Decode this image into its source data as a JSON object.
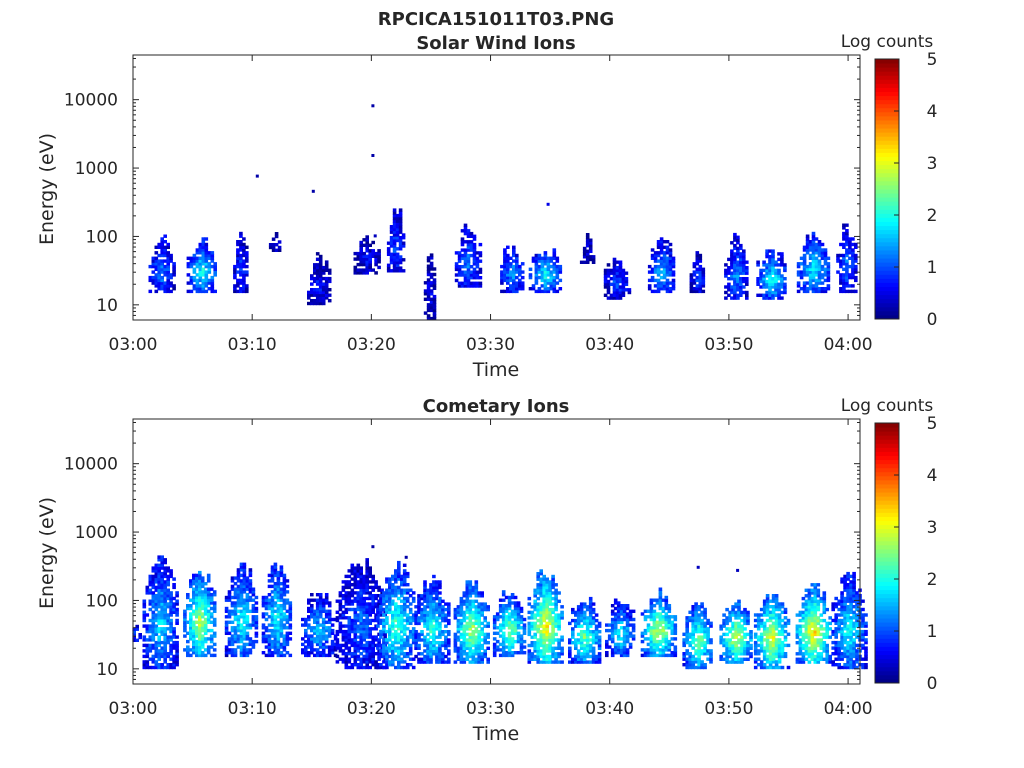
{
  "figure_title": "RPCICA151011T03.PNG",
  "chart_data": [
    {
      "type": "heatmap",
      "title": "Solar Wind Ions",
      "xlabel": "Time",
      "ylabel": "Energy (eV)",
      "y_scale": "log",
      "ylim": [
        6,
        45000
      ],
      "x_range_minutes": [
        0,
        61
      ],
      "x_tick_labels": [
        "03:00",
        "03:10",
        "03:20",
        "03:30",
        "03:40",
        "03:50",
        "04:00"
      ],
      "y_tick_labels": [
        "10",
        "100",
        "1000",
        "10000"
      ],
      "colorbar": {
        "label": "Log counts",
        "range": [
          0,
          5
        ],
        "ticks": [
          "0",
          "1",
          "2",
          "3",
          "4",
          "5"
        ],
        "colormap": "jet"
      },
      "clusters": [
        {
          "t": 2.3,
          "e_lo": 15,
          "e_hi": 85,
          "peak": 1.3,
          "w": 1.0
        },
        {
          "t": 5.7,
          "e_lo": 15,
          "e_hi": 80,
          "peak": 2.0,
          "w": 1.2
        },
        {
          "t": 9.0,
          "e_lo": 15,
          "e_hi": 95,
          "peak": 1.0,
          "w": 0.6
        },
        {
          "t": 11.8,
          "e_lo": 60,
          "e_hi": 100,
          "peak": 0.6,
          "w": 0.4
        },
        {
          "t": 15.5,
          "e_lo": 10,
          "e_hi": 45,
          "peak": 0.7,
          "w": 0.9
        },
        {
          "t": 19.5,
          "e_lo": 28,
          "e_hi": 95,
          "peak": 0.6,
          "w": 1.0
        },
        {
          "t": 22.0,
          "e_lo": 30,
          "e_hi": 220,
          "peak": 1.1,
          "w": 0.7
        },
        {
          "t": 24.8,
          "e_lo": 6,
          "e_hi": 60,
          "peak": 0.6,
          "w": 0.4
        },
        {
          "t": 28.0,
          "e_lo": 18,
          "e_hi": 120,
          "peak": 1.3,
          "w": 1.0
        },
        {
          "t": 31.7,
          "e_lo": 15,
          "e_hi": 70,
          "peak": 1.5,
          "w": 0.9
        },
        {
          "t": 34.5,
          "e_lo": 15,
          "e_hi": 60,
          "peak": 2.0,
          "w": 1.3
        },
        {
          "t": 38.0,
          "e_lo": 40,
          "e_hi": 100,
          "peak": 0.5,
          "w": 0.5
        },
        {
          "t": 40.5,
          "e_lo": 12,
          "e_hi": 45,
          "peak": 1.0,
          "w": 1.0
        },
        {
          "t": 44.3,
          "e_lo": 15,
          "e_hi": 80,
          "peak": 1.6,
          "w": 1.1
        },
        {
          "t": 47.3,
          "e_lo": 15,
          "e_hi": 50,
          "peak": 1.0,
          "w": 0.6
        },
        {
          "t": 50.5,
          "e_lo": 12,
          "e_hi": 85,
          "peak": 1.4,
          "w": 0.9
        },
        {
          "t": 53.5,
          "e_lo": 12,
          "e_hi": 60,
          "peak": 2.0,
          "w": 1.2
        },
        {
          "t": 57.0,
          "e_lo": 15,
          "e_hi": 100,
          "peak": 1.9,
          "w": 1.3
        },
        {
          "t": 59.8,
          "e_lo": 15,
          "e_hi": 140,
          "peak": 1.2,
          "w": 0.8
        }
      ],
      "points": [
        {
          "t": 10.3,
          "e": 750,
          "v": 0.2
        },
        {
          "t": 15.0,
          "e": 450,
          "v": 0.2
        },
        {
          "t": 20.0,
          "e": 8000,
          "v": 0.2
        },
        {
          "t": 20.0,
          "e": 1500,
          "v": 0.2
        },
        {
          "t": 34.7,
          "e": 290,
          "v": 0.5
        },
        {
          "t": 20.2,
          "e": 100,
          "v": 0.3
        }
      ]
    },
    {
      "type": "heatmap",
      "title": "Cometary Ions",
      "xlabel": "Time",
      "ylabel": "Energy (eV)",
      "y_scale": "log",
      "ylim": [
        6,
        45000
      ],
      "x_range_minutes": [
        0,
        61
      ],
      "x_tick_labels": [
        "03:00",
        "03:10",
        "03:20",
        "03:30",
        "03:40",
        "03:50",
        "04:00"
      ],
      "y_tick_labels": [
        "10",
        "100",
        "1000",
        "10000"
      ],
      "colorbar": {
        "label": "Log counts",
        "range": [
          0,
          5
        ],
        "ticks": [
          "0",
          "1",
          "2",
          "3",
          "4",
          "5"
        ],
        "colormap": "jet"
      },
      "clusters": [
        {
          "t": 0.1,
          "e_lo": 25,
          "e_hi": 40,
          "peak": 1.4,
          "w": 0.4
        },
        {
          "t": 2.2,
          "e_lo": 10,
          "e_hi": 400,
          "peak": 1.8,
          "w": 1.4
        },
        {
          "t": 5.5,
          "e_lo": 15,
          "e_hi": 250,
          "peak": 2.9,
          "w": 1.3
        },
        {
          "t": 9.0,
          "e_lo": 15,
          "e_hi": 300,
          "peak": 2.0,
          "w": 1.3
        },
        {
          "t": 12.0,
          "e_lo": 15,
          "e_hi": 350,
          "peak": 2.0,
          "w": 1.2
        },
        {
          "t": 15.5,
          "e_lo": 15,
          "e_hi": 120,
          "peak": 1.7,
          "w": 1.4
        },
        {
          "t": 19.0,
          "e_lo": 10,
          "e_hi": 350,
          "peak": 1.2,
          "w": 2.0
        },
        {
          "t": 22.0,
          "e_lo": 10,
          "e_hi": 320,
          "peak": 2.3,
          "w": 1.6
        },
        {
          "t": 25.0,
          "e_lo": 12,
          "e_hi": 180,
          "peak": 2.2,
          "w": 1.4
        },
        {
          "t": 28.3,
          "e_lo": 12,
          "e_hi": 180,
          "peak": 2.8,
          "w": 1.4
        },
        {
          "t": 31.5,
          "e_lo": 15,
          "e_hi": 120,
          "peak": 2.6,
          "w": 1.3
        },
        {
          "t": 34.5,
          "e_lo": 12,
          "e_hi": 250,
          "peak": 3.3,
          "w": 1.4
        },
        {
          "t": 37.8,
          "e_lo": 12,
          "e_hi": 100,
          "peak": 2.5,
          "w": 1.3
        },
        {
          "t": 40.8,
          "e_lo": 15,
          "e_hi": 90,
          "peak": 2.0,
          "w": 1.2
        },
        {
          "t": 44.0,
          "e_lo": 15,
          "e_hi": 120,
          "peak": 3.0,
          "w": 1.4
        },
        {
          "t": 47.3,
          "e_lo": 10,
          "e_hi": 90,
          "peak": 2.6,
          "w": 1.2
        },
        {
          "t": 50.5,
          "e_lo": 12,
          "e_hi": 90,
          "peak": 3.0,
          "w": 1.3
        },
        {
          "t": 53.5,
          "e_lo": 10,
          "e_hi": 120,
          "peak": 3.1,
          "w": 1.4
        },
        {
          "t": 57.0,
          "e_lo": 12,
          "e_hi": 150,
          "peak": 3.4,
          "w": 1.4
        },
        {
          "t": 60.0,
          "e_lo": 10,
          "e_hi": 220,
          "peak": 2.0,
          "w": 1.4
        }
      ],
      "points": [
        {
          "t": 20.0,
          "e": 600,
          "v": 0.2
        },
        {
          "t": 22.8,
          "e": 420,
          "v": 0.2
        },
        {
          "t": 47.3,
          "e": 300,
          "v": 0.3
        },
        {
          "t": 50.6,
          "e": 270,
          "v": 0.3
        }
      ]
    }
  ]
}
